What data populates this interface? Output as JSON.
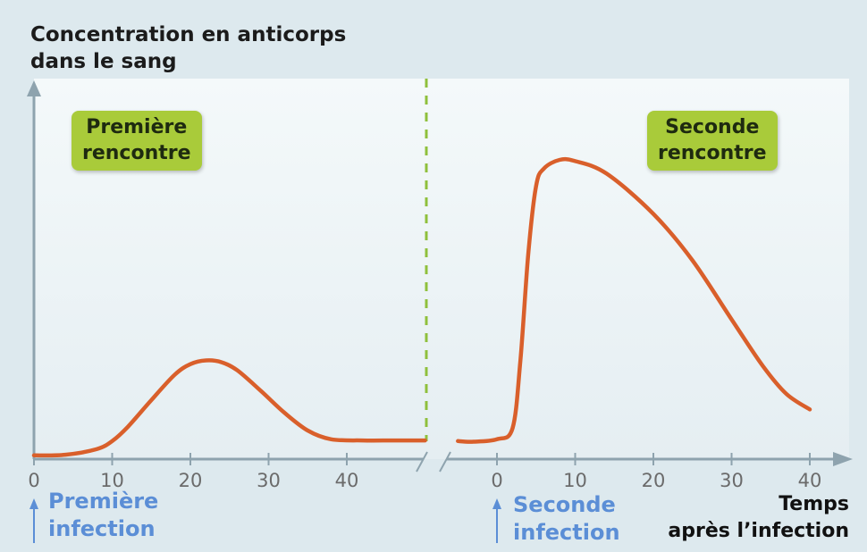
{
  "chart_data": {
    "type": "line",
    "ylabel": "Concentration en anticorps\ndans le sang",
    "xlabel": "Temps\naprès l’infection",
    "grid": false,
    "annotations": {
      "first_encounter": "Première\nrencontre",
      "second_encounter": "Seconde\nrencontre",
      "first_infection": "Première\ninfection",
      "second_infection": "Seconde\ninfection"
    },
    "segments": [
      {
        "name": "first",
        "xlim": [
          0,
          50
        ],
        "ticks": [
          "0",
          "10",
          "20",
          "30",
          "40"
        ],
        "x": [
          0,
          4,
          8,
          10,
          12,
          15,
          18,
          20,
          22,
          24,
          26,
          29,
          32,
          35,
          38,
          42,
          46,
          50
        ],
        "y": [
          0.6,
          0.7,
          1.6,
          2.9,
          5.2,
          9.5,
          13.6,
          15.3,
          15.9,
          15.6,
          14.3,
          11.0,
          7.5,
          4.6,
          3.2,
          3.0,
          3.0,
          3.0
        ]
      },
      {
        "name": "second",
        "xlim": [
          -6,
          45
        ],
        "ticks": [
          "0",
          "10",
          "20",
          "30",
          "40"
        ],
        "x": [
          -5,
          -3,
          0,
          2,
          3,
          4,
          5,
          6,
          8,
          10,
          14,
          20,
          25,
          30,
          34,
          37,
          40
        ],
        "y": [
          2.9,
          2.8,
          3.2,
          5.0,
          16.0,
          33.0,
          44.0,
          46.8,
          48.2,
          48.0,
          46.0,
          39.5,
          32.0,
          22.5,
          15.0,
          10.5,
          8.0
        ]
      }
    ],
    "colors": {
      "line": "#d95f2b",
      "divider": "#8fc03c",
      "axis": "#8ea3ae",
      "badge": "#a9cb3a",
      "infection": "#5b8ed6"
    }
  }
}
